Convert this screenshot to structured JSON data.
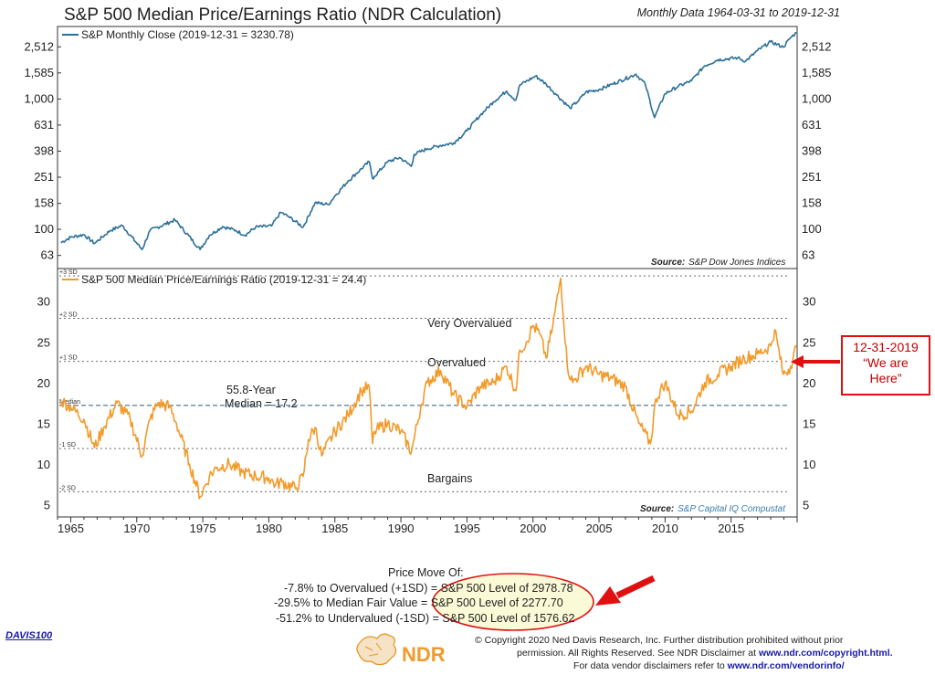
{
  "header": {
    "title": "S&P 500 Median Price/Earnings Ratio (NDR Calculation)",
    "subtitle": "Monthly Data 1964-03-31 to 2019-12-31"
  },
  "top_panel": {
    "legend": "S&P Monthly Close (2019-12-31 = 3230.78)",
    "source_label": "Source:",
    "source_name": "S&P Dow Jones Indices"
  },
  "bottom_panel": {
    "legend": "S&P 500 Median Price/Earnings Ratio (2019-12-31 = 24.4)",
    "source_label": "Source:",
    "source_name": "S&P Capital IQ Compustat",
    "median_note_line1": "55.8-Year",
    "median_note_line2": "Median = 17.2",
    "zones": {
      "very_overvalued": "Very Overvalued",
      "overvalued": "Overvalued",
      "bargains": "Bargains"
    }
  },
  "callout": {
    "line1": "12-31-2019",
    "line2": "“We are",
    "line3": "Here”"
  },
  "price_move": {
    "title": "Price Move Of:",
    "lines": [
      "-7.8% to Overvalued (+1SD) = S&P 500 Level of 2978.78",
      "-29.5% to Median Fair Value = S&P 500 Level of 2277.70",
      "-51.2% to Undervalued (-1SD) = S&P 500 Level of 1576.62"
    ]
  },
  "footer": {
    "code": "DAVIS100",
    "copyright": "© Copyright 2020 Ned Davis Research, Inc. Further distribution prohibited without prior",
    "permission": "permission. All Rights Reserved. See NDR Disclaimer at",
    "permission_link": "www.ndr.com/copyright.html.",
    "vendor": "For data vendor disclaimers refer to",
    "vendor_link": "www.ndr.com/vendorinfo/",
    "logo_text": "NDR"
  },
  "colors": {
    "price_line": "#2a6f99",
    "pe_line": "#f39a2a",
    "median_line": "#4a6b86",
    "callout_red": "#e01010",
    "highlight": "#f7f5b5",
    "link_blue": "#1a1aa8"
  },
  "chart_data": [
    {
      "type": "line",
      "series": [
        {
          "name": "S&P Monthly Close (2019-12-31 = 3230.78)",
          "x": [
            1964.25,
            1965,
            1966,
            1966.8,
            1968,
            1968.9,
            1970.4,
            1971,
            1972.9,
            1974.8,
            1975.5,
            1976.5,
            1977.5,
            1978.2,
            1979,
            1980.2,
            1980.9,
            1981.5,
            1982.6,
            1983.5,
            1984.5,
            1985,
            1986,
            1987.6,
            1987.85,
            1988,
            1989,
            1989.9,
            1990.8,
            1991,
            1992,
            1993,
            1994,
            1995,
            1996,
            1997,
            1998,
            1998.7,
            1999,
            2000.2,
            2001,
            2001.7,
            2002.8,
            2003.5,
            2004,
            2005,
            2006,
            2007.8,
            2008.5,
            2009.2,
            2010,
            2011,
            2012,
            2013,
            2014,
            2015.5,
            2016.1,
            2017,
            2018,
            2018.95,
            2019.5,
            2019.95
          ],
          "y": [
            79,
            87,
            91,
            78,
            98,
            107,
            70,
            98,
            118,
            70,
            90,
            105,
            98,
            90,
            104,
            106,
            135,
            125,
            104,
            160,
            155,
            180,
            235,
            330,
            245,
            255,
            330,
            355,
            305,
            375,
            415,
            440,
            460,
            570,
            750,
            950,
            1150,
            980,
            1280,
            1500,
            1300,
            1100,
            850,
            985,
            1130,
            1180,
            1300,
            1550,
            1300,
            720,
            1100,
            1250,
            1380,
            1800,
            2000,
            2070,
            1950,
            2350,
            2750,
            2500,
            2950,
            3230.78
          ]
        }
      ],
      "y_scale": "log",
      "yticks": [
        63,
        100,
        158,
        251,
        398,
        631,
        1000,
        1585,
        2512
      ],
      "ylim": [
        50,
        3600
      ],
      "xlim": [
        1964,
        2020
      ],
      "xticks": [
        1965,
        1970,
        1975,
        1980,
        1985,
        1990,
        1995,
        2000,
        2005,
        2010,
        2015
      ],
      "legend_position": "top-left"
    },
    {
      "type": "line",
      "series": [
        {
          "name": "S&P 500 Median Price/Earnings Ratio (2019-12-31 = 24.4)",
          "x": [
            1964.25,
            1965,
            1966,
            1966.8,
            1967.5,
            1968.5,
            1969.5,
            1970.4,
            1971,
            1971.6,
            1972.5,
            1973,
            1974,
            1974.8,
            1975.5,
            1976,
            1977,
            1978,
            1979,
            1980,
            1980.5,
            1981,
            1982,
            1982.6,
            1983,
            1983.5,
            1984,
            1985,
            1986,
            1987,
            1987.6,
            1987.85,
            1988,
            1989,
            1990,
            1990.8,
            1991.5,
            1992,
            1993,
            1994,
            1995,
            1996,
            1997,
            1998,
            1998.7,
            1999,
            1999.5,
            2000,
            2000.5,
            2001,
            2001.5,
            2002.1,
            2002.6,
            2003,
            2004,
            2005,
            2006,
            2007,
            2008,
            2008.9,
            2009.3,
            2010,
            2011,
            2012,
            2013,
            2014,
            2015,
            2016,
            2017,
            2018,
            2018.3,
            2018.95,
            2019.5,
            2019.95
          ],
          "y": [
            17.8,
            17,
            15.5,
            12,
            14.5,
            17.5,
            15.5,
            11,
            15.5,
            17.5,
            17,
            15,
            10,
            6,
            8.5,
            9.5,
            10,
            9,
            8.5,
            8.3,
            7.5,
            7.8,
            7,
            8.5,
            13,
            14.5,
            11,
            14,
            16,
            19,
            19.5,
            12.5,
            14,
            15,
            14,
            11.5,
            17,
            20,
            21.5,
            18.5,
            17,
            19.5,
            20,
            22,
            19,
            24,
            25,
            27,
            26,
            23,
            27,
            32.8,
            22,
            20,
            22,
            21,
            20.5,
            19.5,
            15,
            12.5,
            18,
            20,
            16,
            16.5,
            20,
            21,
            22,
            23,
            23.5,
            24.5,
            26.5,
            21,
            22,
            24.4
          ]
        }
      ],
      "yticks": [
        5,
        10,
        15,
        20,
        25,
        30
      ],
      "ylim": [
        3.5,
        34
      ],
      "xlim": [
        1964,
        2020
      ],
      "xticks": [
        1965,
        1970,
        1975,
        1980,
        1985,
        1990,
        1995,
        2000,
        2005,
        2010,
        2015
      ],
      "reference_lines": [
        {
          "label": "+3 SD",
          "value": 33.1
        },
        {
          "label": "+2 SD",
          "value": 27.9
        },
        {
          "label": "+1 SD",
          "value": 22.6
        },
        {
          "label": "Median",
          "value": 17.2
        },
        {
          "label": "-1 SD",
          "value": 11.9
        },
        {
          "label": "-2 SD",
          "value": 6.6
        }
      ],
      "legend_position": "top-left"
    }
  ]
}
